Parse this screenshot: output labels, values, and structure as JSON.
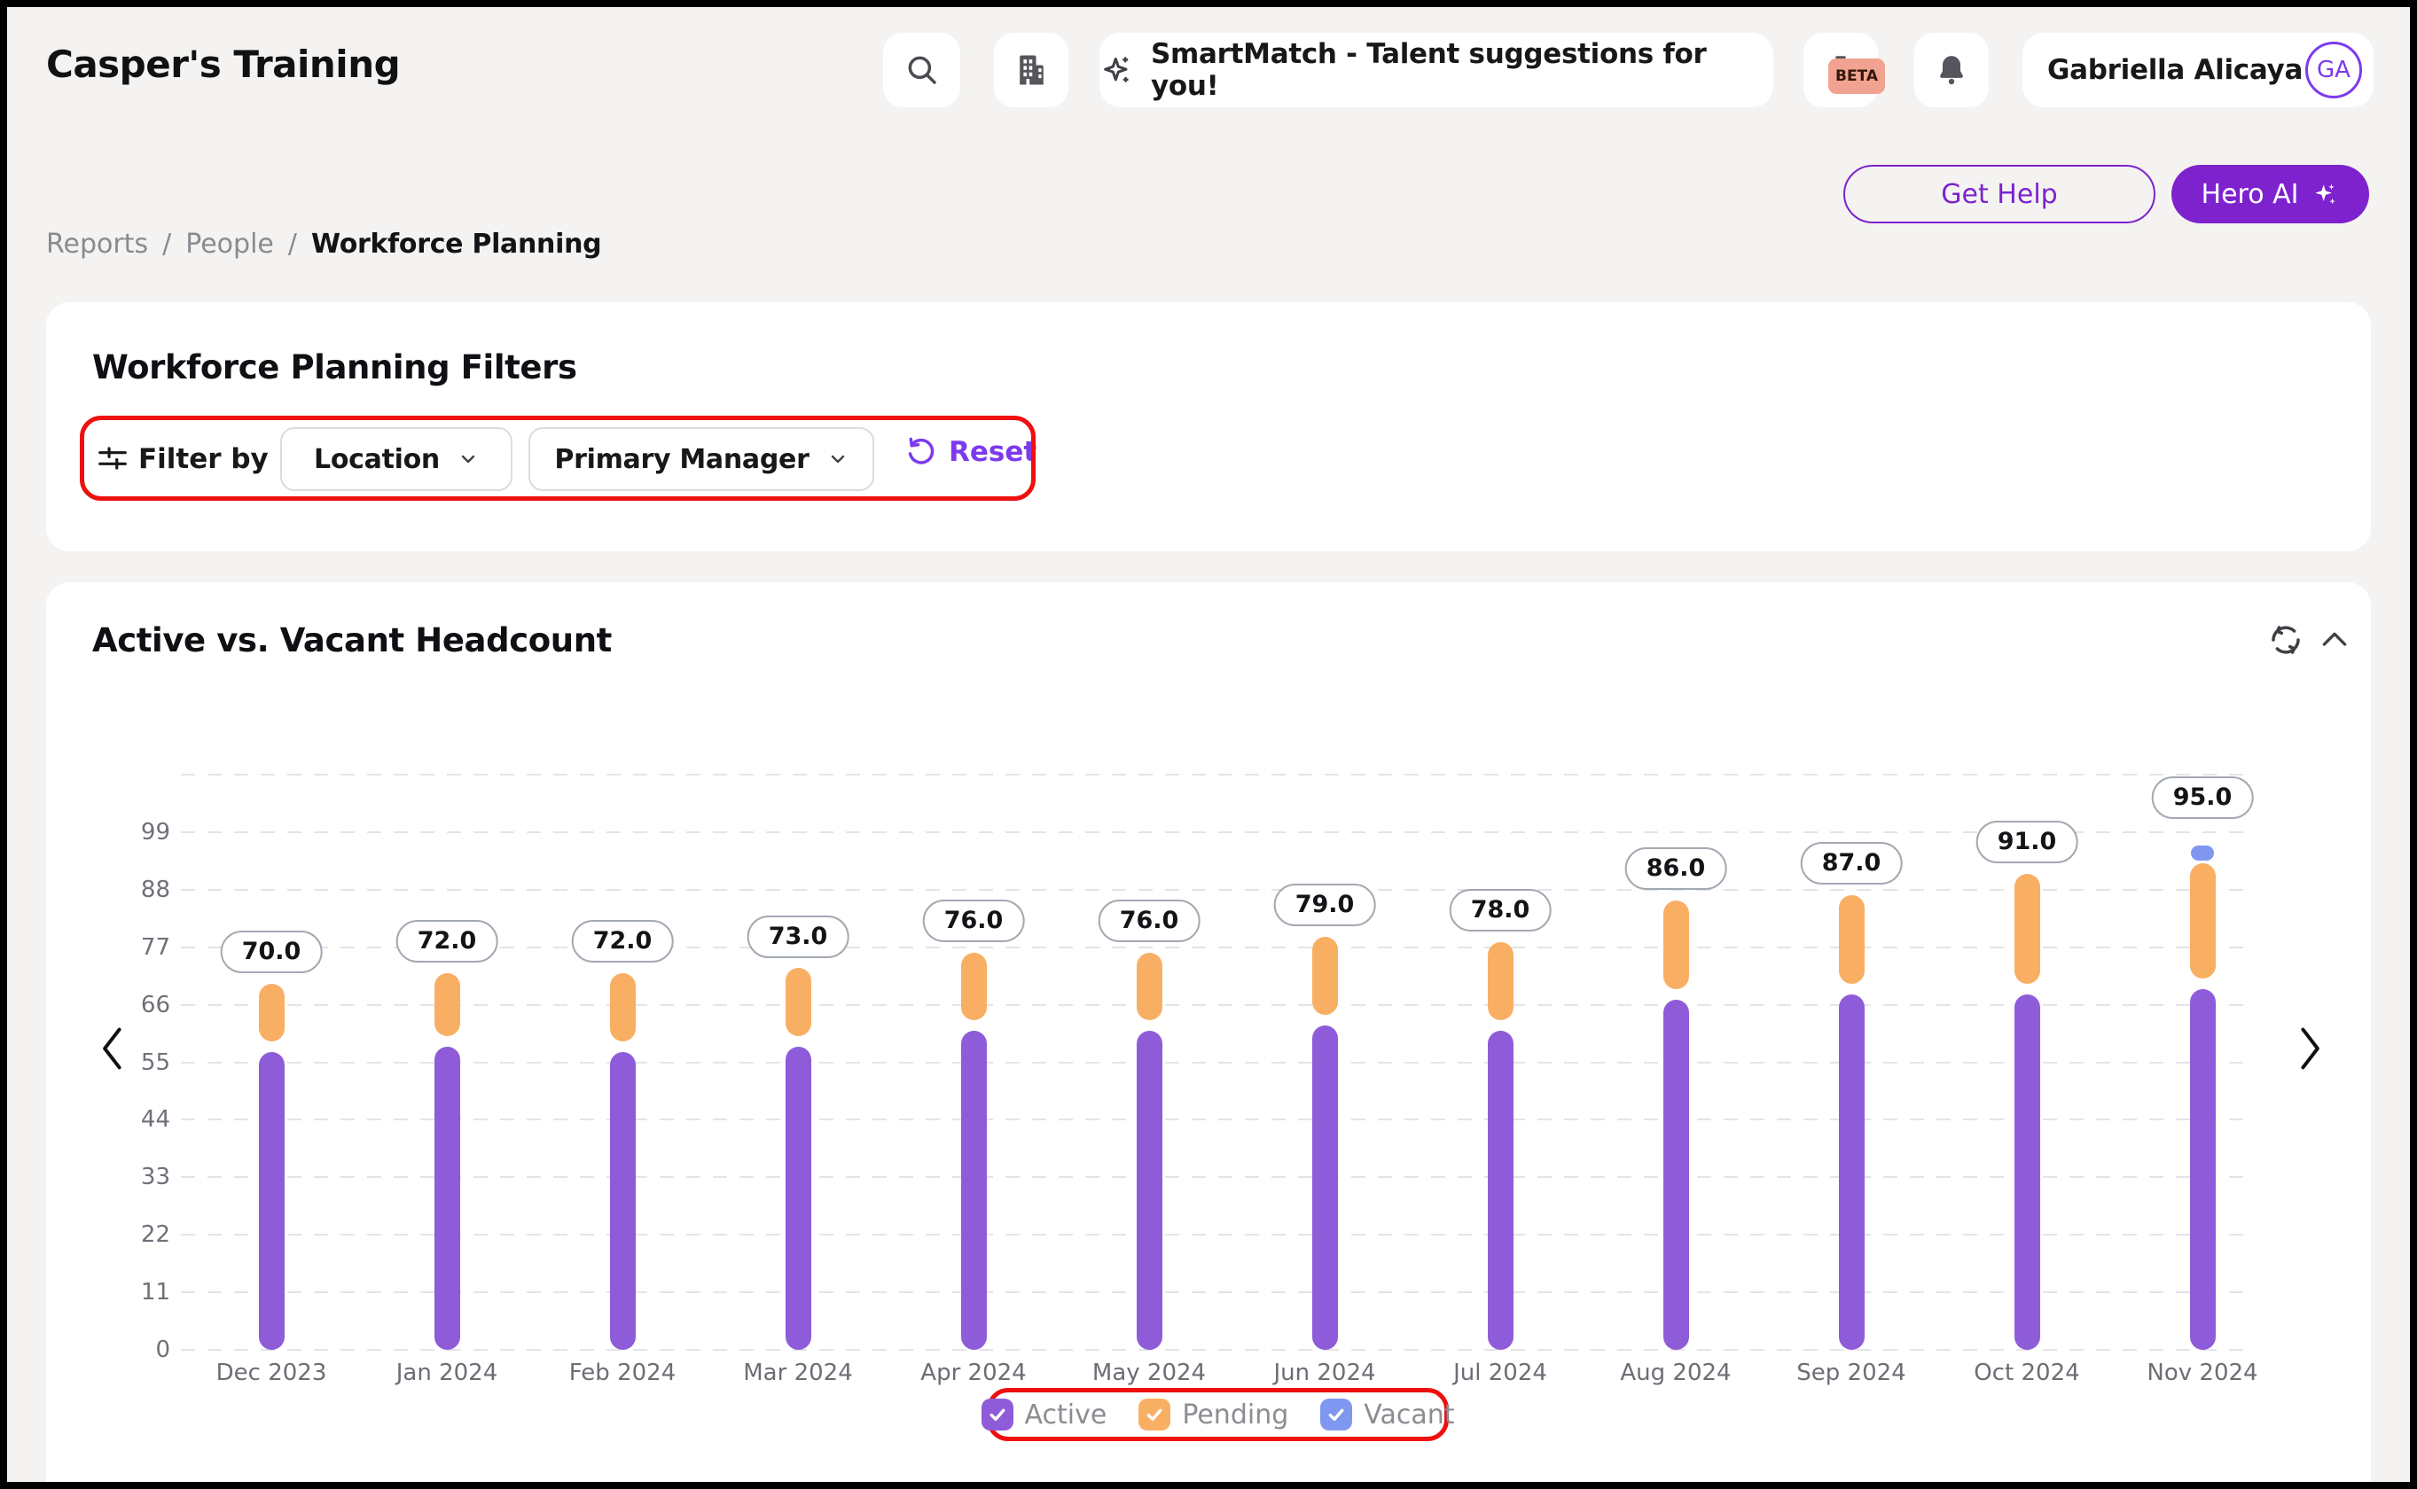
{
  "colors": {
    "accent_purple": "#7e22ce",
    "link_purple": "#7c3aed",
    "annotation_red": "#ee0f0f",
    "page_background": "#f4f3f1",
    "beta_badge_bg": "#f2a290"
  },
  "header": {
    "app_title": "Casper's Training",
    "smartmatch_banner": "SmartMatch - Talent suggestions for you!",
    "beta_badge": "BETA",
    "user": {
      "name": "Gabriella Alicaya",
      "initials": "GA"
    }
  },
  "actions": {
    "get_help": "Get Help",
    "hero_ai": "Hero AI"
  },
  "breadcrumb": {
    "items": [
      "Reports",
      "People",
      "Workforce Planning"
    ],
    "separator": "/"
  },
  "filters": {
    "title": "Workforce Planning Filters",
    "filter_by": "Filter by",
    "dropdowns": [
      {
        "label": "Location"
      },
      {
        "label": "Primary Manager"
      }
    ],
    "reset": "Reset"
  },
  "chart_card": {
    "title": "Active vs. Vacant Headcount"
  },
  "chart_data": {
    "type": "bar",
    "stacked": true,
    "title": "Active vs. Vacant Headcount",
    "categories": [
      "Dec 2023",
      "Jan 2024",
      "Feb 2024",
      "Mar 2024",
      "Apr 2024",
      "May 2024",
      "Jun 2024",
      "Jul 2024",
      "Aug 2024",
      "Sep 2024",
      "Oct 2024",
      "Nov 2024"
    ],
    "totals": [
      70,
      72,
      72,
      73,
      76,
      76,
      79,
      78,
      86,
      87,
      91,
      95
    ],
    "total_labels": [
      "70.0",
      "72.0",
      "72.0",
      "73.0",
      "76.0",
      "76.0",
      "79.0",
      "78.0",
      "86.0",
      "87.0",
      "91.0",
      "95.0"
    ],
    "series": [
      {
        "name": "Active",
        "color": "#8f5cd9",
        "values": [
          58,
          59,
          58,
          59,
          62,
          62,
          63,
          62,
          68,
          69,
          69,
          70
        ]
      },
      {
        "name": "Pending",
        "color": "#f9af63",
        "values": [
          12,
          13,
          14,
          14,
          14,
          14,
          16,
          16,
          18,
          18,
          22,
          23
        ]
      },
      {
        "name": "Vacant",
        "color": "#7f97f0",
        "values": [
          0,
          0,
          0,
          0,
          0,
          0,
          0,
          0,
          0,
          0,
          0,
          2
        ]
      }
    ],
    "y_ticks": [
      0,
      11,
      22,
      33,
      44,
      55,
      66,
      77,
      88,
      99
    ],
    "ylim": [
      0,
      110
    ],
    "grid": "dashed-horizontal",
    "legend": [
      {
        "label": "Active",
        "color": "#8f5cd9",
        "checked": true
      },
      {
        "label": "Pending",
        "color": "#f9af63",
        "checked": true
      },
      {
        "label": "Vacant",
        "color": "#7f97f0",
        "checked": true
      }
    ],
    "legend_position": "bottom"
  },
  "annotations": {
    "color": "#ee0f0f",
    "regions": [
      "filter-bar",
      "chart-legend"
    ]
  }
}
